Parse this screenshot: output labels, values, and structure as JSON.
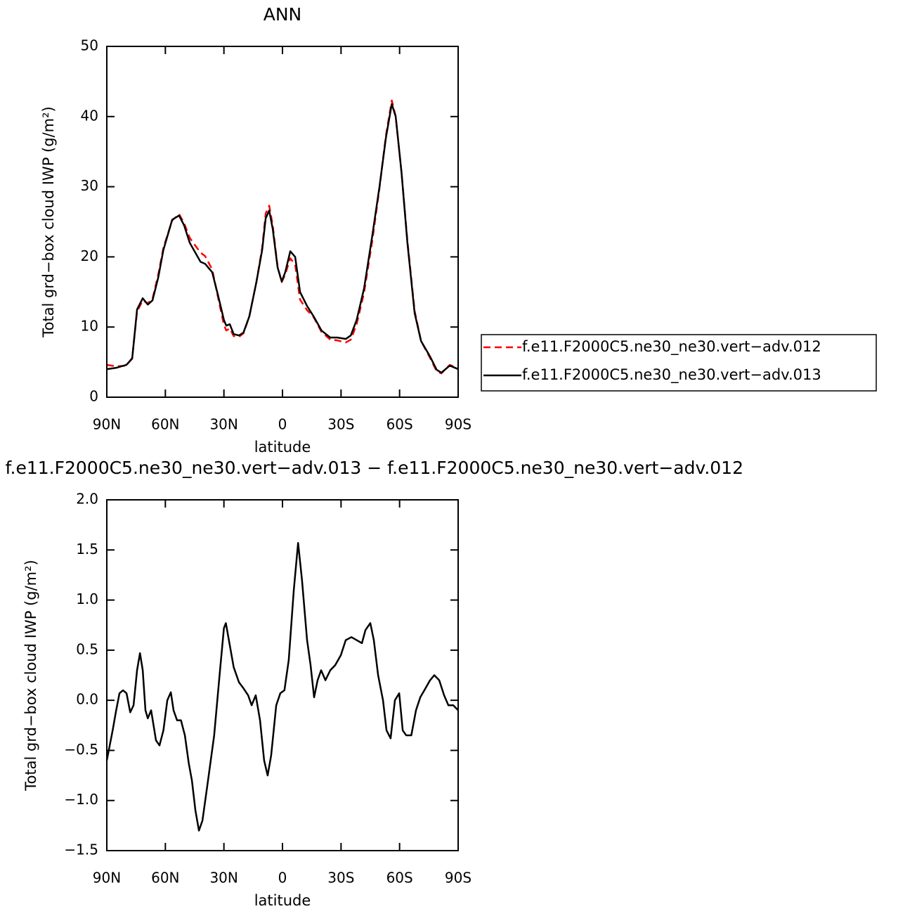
{
  "chart_data": [
    {
      "type": "line",
      "title": "ANN",
      "x_label": "latitude",
      "y_label": "Total grd−box cloud IWP (g/m²)",
      "xlim": [
        90,
        -90
      ],
      "ylim": [
        0,
        50
      ],
      "xticks": [
        {
          "value": 90,
          "label": "90N"
        },
        {
          "value": 60,
          "label": "60N"
        },
        {
          "value": 30,
          "label": "30N"
        },
        0,
        {
          "value": -30,
          "label": "30S"
        },
        {
          "value": -60,
          "label": "60S"
        },
        {
          "value": -90,
          "label": "90S"
        }
      ],
      "yticks": [
        0,
        10,
        20,
        30,
        40,
        50
      ],
      "legend": "right",
      "x": [
        90,
        85,
        80,
        77,
        74.5,
        71.6,
        69,
        66.6,
        63.7,
        61,
        56.5,
        53,
        50.4,
        47.5,
        42,
        39.6,
        36,
        33,
        30,
        28.8,
        27,
        25,
        22.3,
        20,
        17,
        13.3,
        10.4,
        8.6,
        6.8,
        5,
        2.5,
        0.4,
        -1.4,
        -4,
        -6.5,
        -9,
        -12.6,
        -16,
        -20,
        -24.5,
        -28,
        -32.4,
        -35,
        -38,
        -41.8,
        -46,
        -49.7,
        -53,
        -56,
        -58,
        -61,
        -64,
        -67.7,
        -71,
        -75.6,
        -79,
        -81.4,
        -85.7,
        -90
      ],
      "series": [
        {
          "name": "f.e11.F2000C5.ne30_ne30.vert−adv.012",
          "color": "#ff0000",
          "dashed": true,
          "values": [
            4.6,
            4.4,
            4.5,
            5.6,
            12.2,
            13.8,
            13.4,
            14.0,
            17.4,
            21.3,
            25.2,
            26.1,
            24.8,
            22.7,
            20.6,
            20.1,
            18.2,
            14.2,
            10.3,
            9.5,
            9.8,
            8.7,
            8.6,
            9.1,
            11.5,
            16.5,
            21.3,
            26.2,
            27.3,
            24.5,
            18.6,
            16.4,
            17.5,
            19.8,
            18.9,
            13.9,
            12.4,
            11.4,
            9.3,
            8.2,
            8.1,
            7.8,
            8.2,
            10.4,
            14.9,
            22.3,
            29.8,
            37.3,
            42.3,
            40,
            32,
            22.3,
            12.3,
            8,
            5.6,
            3.7,
            3.4,
            4.6,
            4.1
          ]
        },
        {
          "name": "f.e11.F2000C5.ne30_ne30.vert−adv.013",
          "color": "#000000",
          "dashed": false,
          "values": [
            4.0,
            4.2,
            4.6,
            5.5,
            12.5,
            14.1,
            13.2,
            13.8,
            17,
            21,
            25.3,
            25.9,
            24.5,
            22,
            19.3,
            19,
            17.8,
            14.5,
            11,
            10.2,
            10.4,
            9,
            8.8,
            9.2,
            11.5,
            16.5,
            21,
            25.5,
            26.6,
            24,
            18.5,
            16.5,
            17.8,
            20.8,
            20,
            15,
            13,
            11.5,
            9.5,
            8.5,
            8.5,
            8.3,
            8.8,
            11,
            15.5,
            23,
            30,
            37,
            41.8,
            40,
            32,
            22,
            12,
            8,
            5.8,
            3.9,
            3.5,
            4.5,
            4.0
          ]
        }
      ]
    },
    {
      "type": "line",
      "title": "f.e11.F2000C5.ne30_ne30.vert−adv.013 − f.e11.F2000C5.ne30_ne30.vert−adv.012",
      "x_label": "latitude",
      "y_label": "Total grd−box cloud IWP (g/m²)",
      "xlim": [
        90,
        -90
      ],
      "ylim": [
        -1.5,
        2
      ],
      "xticks": [
        {
          "value": 90,
          "label": "90N"
        },
        {
          "value": 60,
          "label": "60N"
        },
        {
          "value": 30,
          "label": "30N"
        },
        0,
        {
          "value": -30,
          "label": "30S"
        },
        {
          "value": -60,
          "label": "60S"
        },
        {
          "value": -90,
          "label": "90S"
        }
      ],
      "yticks": [
        {
          "value": -1.5,
          "label": "−1.5"
        },
        {
          "value": -1,
          "label": "−1.0"
        },
        {
          "value": -0.5,
          "label": "−0.5"
        },
        {
          "value": 0,
          "label": "0.0"
        },
        0.5,
        {
          "value": 1,
          "label": "1.0"
        },
        1.5,
        {
          "value": 2,
          "label": "2.0"
        }
      ],
      "x": [
        90,
        87,
        85.2,
        83.5,
        81.7,
        79.9,
        78,
        76.3,
        74.5,
        73,
        71.6,
        70.2,
        69,
        67.3,
        64.8,
        63,
        61,
        59,
        57.2,
        55.8,
        54,
        52,
        50,
        48,
        46.4,
        44.6,
        42.8,
        41,
        38.5,
        35,
        32,
        30,
        29,
        27,
        25,
        22.3,
        20,
        17.6,
        15.8,
        13.7,
        11.5,
        9.4,
        7.6,
        5.8,
        3.2,
        1.1,
        -1,
        -3.2,
        -5.8,
        -8,
        -10,
        -12.6,
        -14.4,
        -16.2,
        -18,
        -19.8,
        -22,
        -24.5,
        -27,
        -29.9,
        -32.4,
        -35.3,
        -38,
        -40.7,
        -42.5,
        -45,
        -46.8,
        -49,
        -51.5,
        -53.3,
        -55.4,
        -57.6,
        -59.8,
        -61.6,
        -63.4,
        -66,
        -68.4,
        -70.6,
        -72.7,
        -75.6,
        -77.8,
        -80.3,
        -82.8,
        -85,
        -87.5,
        -90
      ],
      "series": [
        {
          "color": "#000000",
          "dashed": false,
          "values": [
            -0.6,
            -0.3,
            -0.1,
            0.07,
            0.1,
            0.07,
            -0.12,
            -0.05,
            0.3,
            0.47,
            0.3,
            -0.1,
            -0.18,
            -0.1,
            -0.4,
            -0.45,
            -0.3,
            0,
            0.08,
            -0.1,
            -0.2,
            -0.2,
            -0.35,
            -0.63,
            -0.8,
            -1.1,
            -1.3,
            -1.2,
            -0.85,
            -0.35,
            0.3,
            0.72,
            0.77,
            0.55,
            0.33,
            0.18,
            0.12,
            0.05,
            -0.05,
            0.05,
            -0.2,
            -0.6,
            -0.75,
            -0.55,
            -0.05,
            0.07,
            0.1,
            0.4,
            1.1,
            1.57,
            1.2,
            0.6,
            0.35,
            0.03,
            0.2,
            0.3,
            0.2,
            0.3,
            0.35,
            0.45,
            0.6,
            0.63,
            0.6,
            0.57,
            0.7,
            0.77,
            0.6,
            0.25,
            0,
            -0.3,
            -0.38,
            0,
            0.07,
            -0.3,
            -0.35,
            -0.35,
            -0.1,
            0.03,
            0.1,
            0.2,
            0.25,
            0.2,
            0.05,
            -0.05,
            -0.05,
            -0.1
          ]
        }
      ]
    }
  ]
}
